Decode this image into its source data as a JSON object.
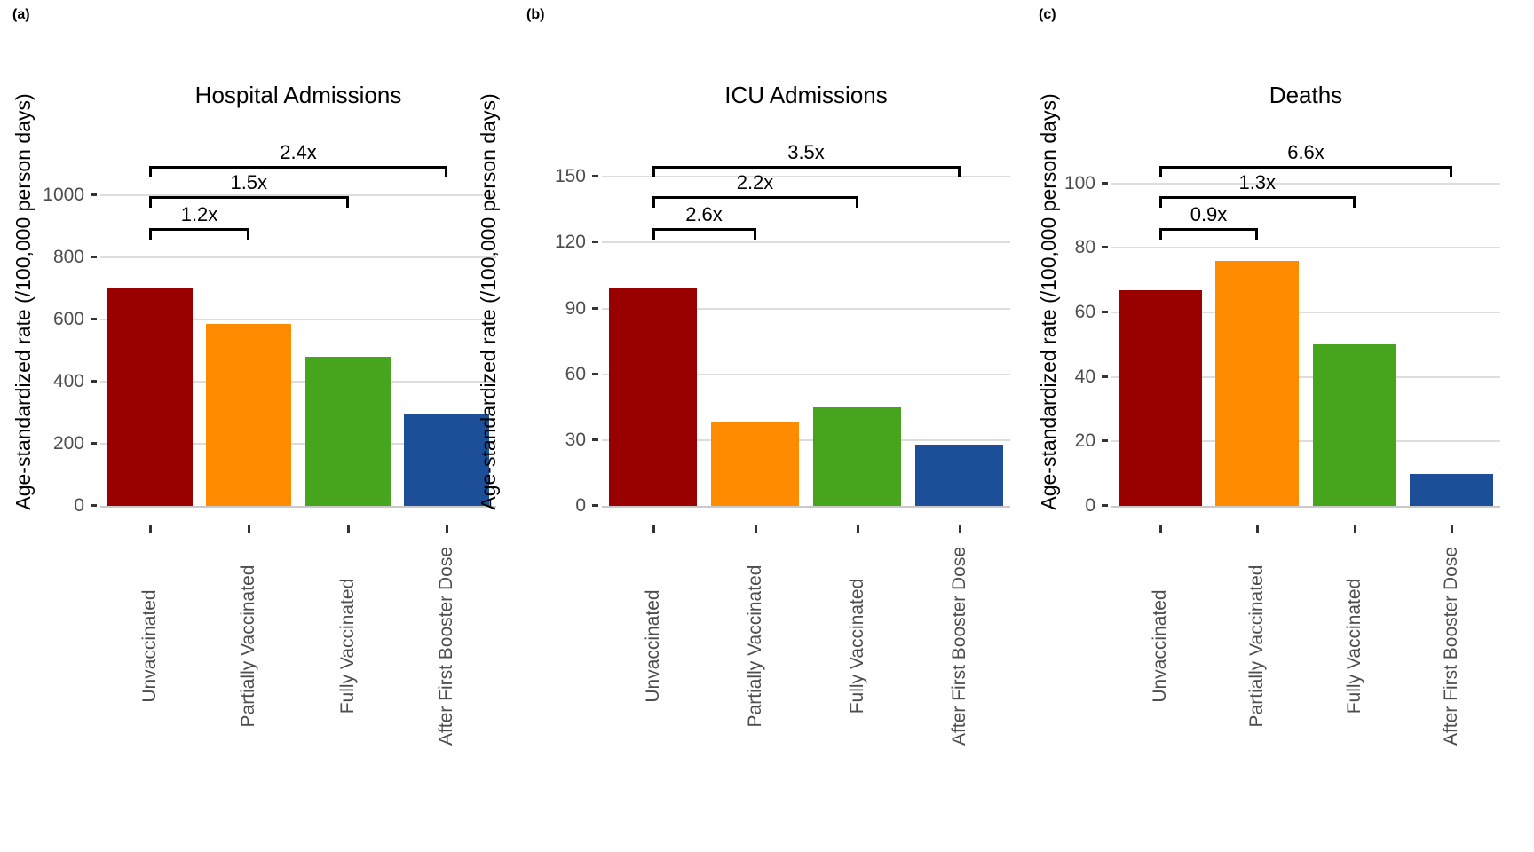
{
  "figure": {
    "background": "#FFFFFF",
    "y_axis_label": "Age-standardized rate (/100,000 person days)",
    "categories": [
      "Unvaccinated",
      "Partially Vaccinated",
      "Fully Vaccinated",
      "After First Booster Dose"
    ],
    "bar_colors": [
      "#990000",
      "#FF8C00",
      "#46A51D",
      "#1D4F99"
    ],
    "gridline_color": "#DDDDDD",
    "axis_line_color": "#C9C9C9",
    "tick_mark_color": "#333333",
    "tick_label_color": "#4D4D4D",
    "text_color": "#000000",
    "bracket_color": "#000000"
  },
  "chart_data": [
    {
      "type": "bar",
      "panel_label": "(a)",
      "title": "Hospital Admissions",
      "ylabel": "Age-standardized rate (/100,000 person days)",
      "xlabel": "",
      "categories": [
        "Unvaccinated",
        "Partially Vaccinated",
        "Fully Vaccinated",
        "After First Booster Dose"
      ],
      "values": [
        700,
        585,
        480,
        295
      ],
      "yticks": [
        0,
        200,
        400,
        600,
        800,
        1000
      ],
      "ylim": [
        0,
        1214
      ],
      "grid": "horizontal major gridlines on white",
      "legend": "none",
      "annotations": [
        {
          "label": "1.2x",
          "from_category": "Unvaccinated",
          "to_category": "Partially Vaccinated"
        },
        {
          "label": "1.5x",
          "from_category": "Unvaccinated",
          "to_category": "Fully Vaccinated"
        },
        {
          "label": "2.4x",
          "from_category": "Unvaccinated",
          "to_category": "After First Booster Dose"
        }
      ]
    },
    {
      "type": "bar",
      "panel_label": "(b)",
      "title": "ICU Admissions",
      "ylabel": "Age-standardized rate (/100,000 person days)",
      "xlabel": "",
      "categories": [
        "Unvaccinated",
        "Partially Vaccinated",
        "Fully Vaccinated",
        "After First Booster Dose"
      ],
      "values": [
        99,
        38,
        45,
        28
      ],
      "yticks": [
        0,
        30,
        60,
        90,
        120,
        150
      ],
      "ylim": [
        0,
        172
      ],
      "grid": "horizontal major gridlines on white",
      "legend": "none",
      "annotations": [
        {
          "label": "2.6x",
          "from_category": "Unvaccinated",
          "to_category": "Partially Vaccinated"
        },
        {
          "label": "2.2x",
          "from_category": "Unvaccinated",
          "to_category": "Fully Vaccinated"
        },
        {
          "label": "3.5x",
          "from_category": "Unvaccinated",
          "to_category": "After First Booster Dose"
        }
      ]
    },
    {
      "type": "bar",
      "panel_label": "(c)",
      "title": "Deaths",
      "ylabel": "Age-standardized rate (/100,000 person days)",
      "xlabel": "",
      "categories": [
        "Unvaccinated",
        "Partially Vaccinated",
        "Fully Vaccinated",
        "After First Booster Dose"
      ],
      "values": [
        67,
        76,
        50,
        10
      ],
      "yticks": [
        0,
        20,
        40,
        60,
        80,
        100
      ],
      "ylim": [
        0,
        117
      ],
      "grid": "horizontal major gridlines on white",
      "legend": "none",
      "annotations": [
        {
          "label": "0.9x",
          "from_category": "Unvaccinated",
          "to_category": "Partially Vaccinated"
        },
        {
          "label": "1.3x",
          "from_category": "Unvaccinated",
          "to_category": "Fully Vaccinated"
        },
        {
          "label": "6.6x",
          "from_category": "Unvaccinated",
          "to_category": "After First Booster Dose"
        }
      ]
    }
  ]
}
